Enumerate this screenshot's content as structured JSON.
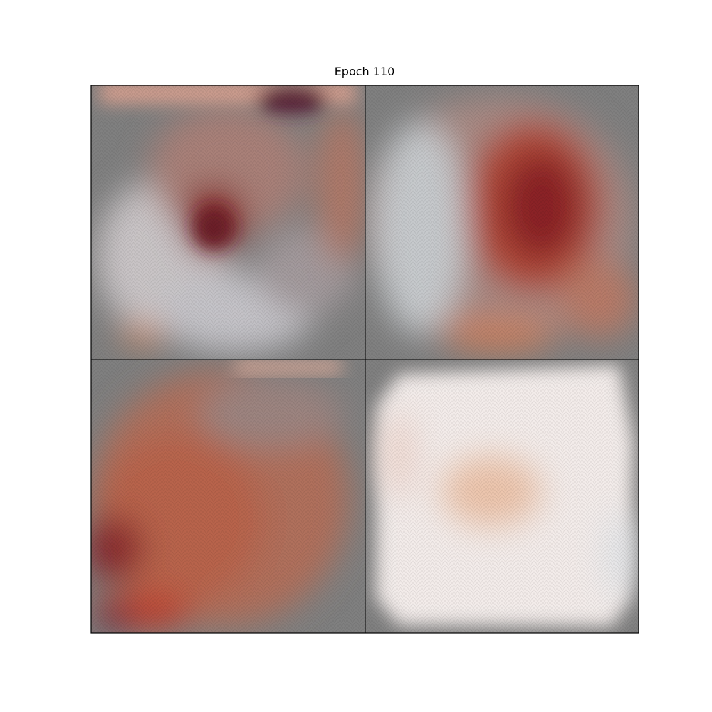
{
  "title": "Epoch 110"
}
